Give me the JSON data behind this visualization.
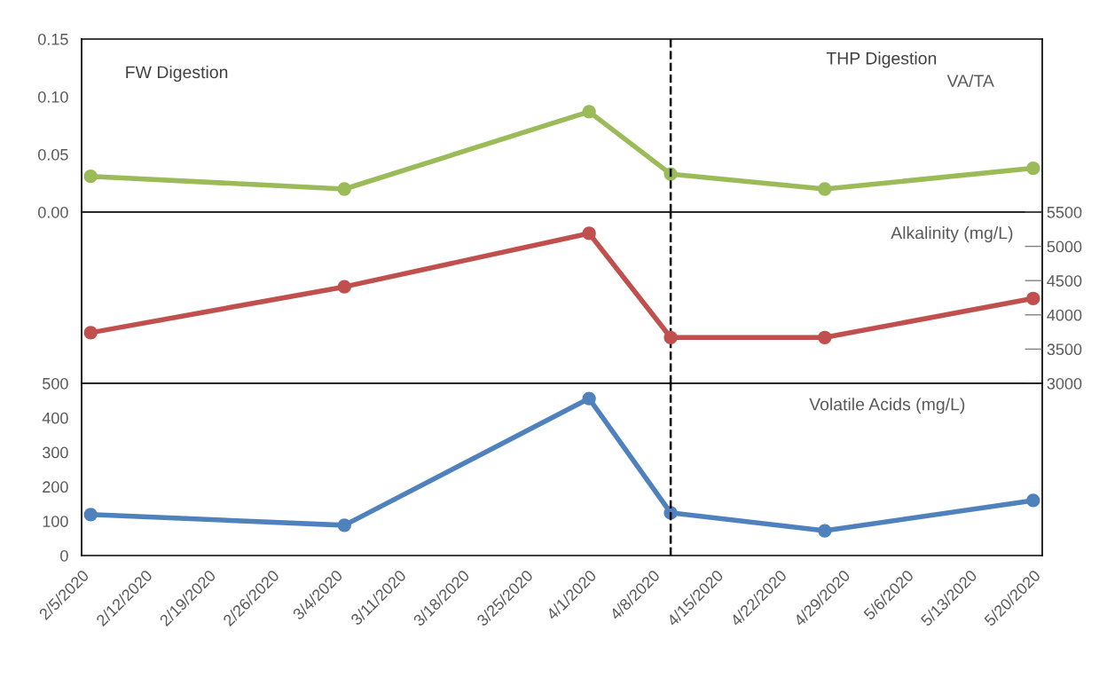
{
  "chart_data": [
    {
      "type": "line",
      "x": [
        "2020-02-06",
        "2020-03-05",
        "2020-04-01",
        "2020-04-10",
        "2020-04-27",
        "2020-05-20"
      ],
      "series": [
        {
          "name": "VA/TA",
          "color": "#9bbb59",
          "values": [
            0.031,
            0.02,
            0.087,
            0.033,
            0.02,
            0.038
          ]
        }
      ],
      "xlim": [
        "2020-02-05",
        "2020-05-21"
      ],
      "ylim": [
        0,
        0.15
      ],
      "yticks": [
        {
          "value": 0,
          "label": "0.00"
        },
        {
          "value": 0.05,
          "label": "0.05"
        },
        {
          "value": 0.1,
          "label": "0.10"
        },
        {
          "value": 0.15,
          "label": "0.15"
        }
      ],
      "annotations": [
        "FW Digestion",
        "THP Digestion"
      ],
      "ref_lines": [
        {
          "axis": "x",
          "value": "2020-04-10",
          "line_style": "dashed",
          "color": "#000000"
        }
      ],
      "tick_labels": "y",
      "marker": "circle",
      "legend": false,
      "grid": false
    },
    {
      "type": "line",
      "x": [
        "2020-02-06",
        "2020-03-05",
        "2020-04-01",
        "2020-04-10",
        "2020-04-27",
        "2020-05-20"
      ],
      "series": [
        {
          "name": "Alkalinity (mg/L)",
          "color": "#c0504d",
          "axis": "y2",
          "values": [
            3740,
            4410,
            5190,
            3670,
            3670,
            4240
          ]
        }
      ],
      "xlim": [
        "2020-02-05",
        "2020-05-21"
      ],
      "y2lim": [
        3000,
        5500
      ],
      "y2ticks": [
        3000,
        3500,
        4000,
        4500,
        5000,
        5500
      ],
      "ref_lines": [
        {
          "axis": "x",
          "value": "2020-04-10",
          "line_style": "dashed",
          "color": "#000000"
        }
      ],
      "tick_labels": "y",
      "marker": "circle",
      "legend": false,
      "grid": false
    },
    {
      "type": "line",
      "x": [
        "2020-02-06",
        "2020-03-05",
        "2020-04-01",
        "2020-04-10",
        "2020-04-27",
        "2020-05-20"
      ],
      "series": [
        {
          "name": "Volatile Acids (mg/L)",
          "color": "#4f81bd",
          "values": [
            119,
            88,
            456,
            124,
            72,
            160
          ]
        }
      ],
      "xlim": [
        "2020-02-05",
        "2020-05-21"
      ],
      "ylim": [
        0,
        500
      ],
      "yticks": [
        0,
        100,
        200,
        300,
        400,
        500
      ],
      "xticks": [
        {
          "value": "2020-02-05",
          "label": "2/5/2020"
        },
        {
          "value": "2020-02-12",
          "label": "2/12/2020"
        },
        {
          "value": "2020-02-19",
          "label": "2/19/2020"
        },
        {
          "value": "2020-02-26",
          "label": "2/26/2020"
        },
        {
          "value": "2020-03-04",
          "label": "3/4/2020"
        },
        {
          "value": "2020-03-11",
          "label": "3/11/2020"
        },
        {
          "value": "2020-03-18",
          "label": "3/18/2020"
        },
        {
          "value": "2020-03-25",
          "label": "3/25/2020"
        },
        {
          "value": "2020-04-01",
          "label": "4/1/2020"
        },
        {
          "value": "2020-04-08",
          "label": "4/8/2020"
        },
        {
          "value": "2020-04-15",
          "label": "4/15/2020"
        },
        {
          "value": "2020-04-22",
          "label": "4/22/2020"
        },
        {
          "value": "2020-04-29",
          "label": "4/29/2020"
        },
        {
          "value": "2020-05-06",
          "label": "5/6/2020"
        },
        {
          "value": "2020-05-13",
          "label": "5/13/2020"
        },
        {
          "value": "2020-05-20",
          "label": "5/20/2020"
        }
      ],
      "ref_lines": [
        {
          "axis": "x",
          "value": "2020-04-10",
          "line_style": "dashed",
          "color": "#000000"
        }
      ],
      "marker": "circle",
      "legend": false,
      "grid": false
    }
  ]
}
